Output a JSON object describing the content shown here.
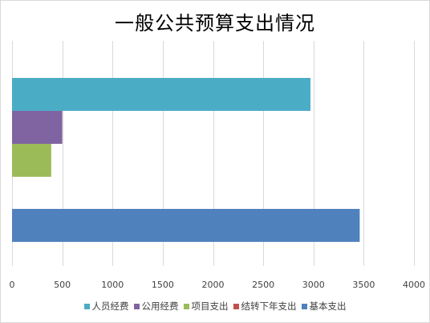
{
  "chart_data": {
    "type": "bar",
    "orientation": "horizontal",
    "title": "一般公共预算支出情况",
    "xlim": [
      0,
      4000
    ],
    "x_ticks": [
      "0",
      "500",
      "1000",
      "1500",
      "2000",
      "2500",
      "3000",
      "3500",
      "4000"
    ],
    "grid": "vertical",
    "legend_position": "bottom",
    "categories": [
      "group-1",
      "group-2"
    ],
    "series": [
      {
        "name": "人员经费",
        "color": "#4bacc6",
        "values": [
          2970,
          null
        ]
      },
      {
        "name": "公用经费",
        "color": "#8064a2",
        "values": [
          500,
          null
        ]
      },
      {
        "name": "项目支出",
        "color": "#9bbb59",
        "values": [
          390,
          null
        ]
      },
      {
        "name": "结转下年支出",
        "color": "#c0504d",
        "values": [
          null,
          null
        ]
      },
      {
        "name": "基本支出",
        "color": "#4f81bd",
        "values": [
          null,
          3460
        ]
      }
    ]
  }
}
